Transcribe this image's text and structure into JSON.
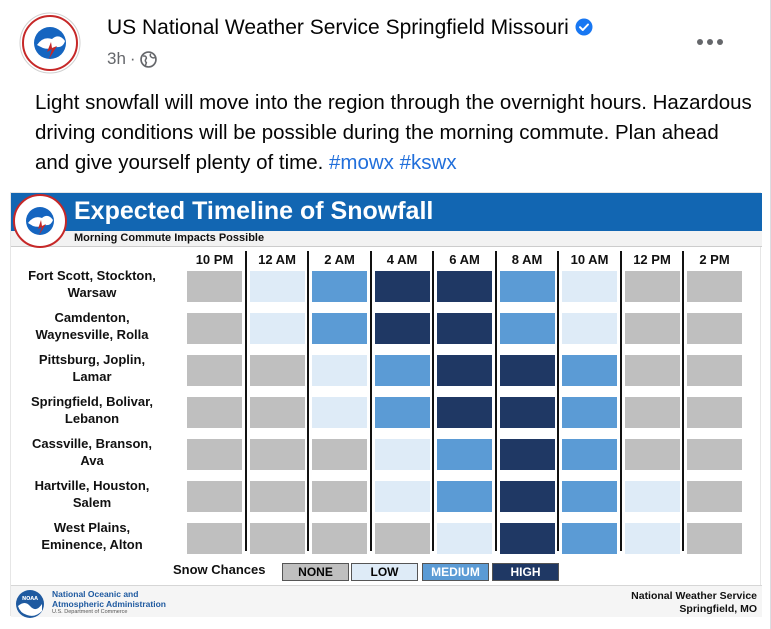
{
  "post": {
    "page_name": "US National Weather Service Springfield Missouri",
    "time": "3h",
    "text": "Light snowfall will move into the region through the overnight hours. Hazardous driving conditions will be possible during the morning commute. Plan ahead and give yourself plenty of time.",
    "hashtags": [
      "#mowx",
      "#kswx"
    ]
  },
  "graphic": {
    "title": "Expected Timeline of Snowfall",
    "subtitle": "Morning Commute Impacts Possible",
    "times": [
      "10 PM",
      "12 AM",
      "2 AM",
      "4 AM",
      "6 AM",
      "8 AM",
      "10 AM",
      "12 PM",
      "2 PM"
    ],
    "rows": [
      {
        "line1": "Fort Scott, Stockton,",
        "line2": "Warsaw",
        "levels": [
          "none",
          "low",
          "medium",
          "high",
          "high",
          "medium",
          "low",
          "none",
          "none"
        ]
      },
      {
        "line1": "Camdenton,",
        "line2": "Waynesville, Rolla",
        "levels": [
          "none",
          "low",
          "medium",
          "high",
          "high",
          "medium",
          "low",
          "none",
          "none"
        ]
      },
      {
        "line1": "Pittsburg, Joplin,",
        "line2": "Lamar",
        "levels": [
          "none",
          "none",
          "low",
          "medium",
          "high",
          "high",
          "medium",
          "none",
          "none"
        ]
      },
      {
        "line1": "Springfield, Bolivar,",
        "line2": "Lebanon",
        "levels": [
          "none",
          "none",
          "low",
          "medium",
          "high",
          "high",
          "medium",
          "none",
          "none"
        ]
      },
      {
        "line1": "Cassville, Branson,",
        "line2": "Ava",
        "levels": [
          "none",
          "none",
          "none",
          "low",
          "medium",
          "high",
          "medium",
          "none",
          "none"
        ]
      },
      {
        "line1": "Hartville, Houston,",
        "line2": "Salem",
        "levels": [
          "none",
          "none",
          "none",
          "low",
          "medium",
          "high",
          "medium",
          "low",
          "none"
        ]
      },
      {
        "line1": "West Plains,",
        "line2": "Eminence, Alton",
        "levels": [
          "none",
          "none",
          "none",
          "none",
          "low",
          "high",
          "medium",
          "low",
          "none"
        ]
      }
    ],
    "legend": {
      "label": "Snow Chances",
      "items": [
        {
          "key": "none",
          "label": "NONE"
        },
        {
          "key": "low",
          "label": "LOW"
        },
        {
          "key": "medium",
          "label": "MEDIUM"
        },
        {
          "key": "high",
          "label": "HIGH"
        }
      ]
    },
    "colors": {
      "none": "#bfbfbf",
      "low": "#deebf7",
      "medium": "#5b9bd5",
      "high": "#1f3864",
      "header": "#1266b2",
      "hashtag": "#216fdb"
    },
    "footer": {
      "noaa_line1": "National Oceanic and",
      "noaa_line2": "Atmospheric Administration",
      "noaa_dept": "U.S. Department of Commerce",
      "nws_line1": "National Weather Service",
      "nws_line2": "Springfield, MO"
    }
  }
}
